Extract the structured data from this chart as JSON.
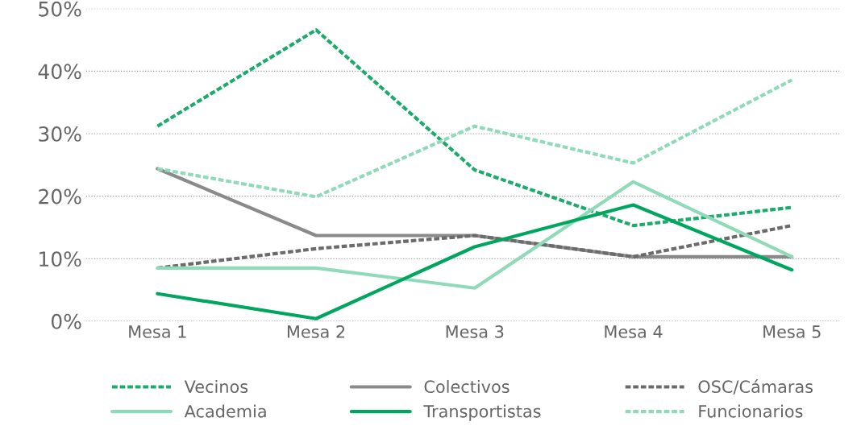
{
  "chart_data": {
    "type": "line",
    "categories": [
      "Mesa 1",
      "Mesa 2",
      "Mesa 3",
      "Mesa 4",
      "Mesa 5"
    ],
    "ylim": [
      0,
      50
    ],
    "yticks": [
      {
        "value": 0,
        "label": "0%"
      },
      {
        "value": 10,
        "label": "10%"
      },
      {
        "value": 20,
        "label": "20%"
      },
      {
        "value": 30,
        "label": "30%"
      },
      {
        "value": 40,
        "label": "40%"
      },
      {
        "value": 50,
        "label": "50%"
      }
    ],
    "grid": "y",
    "legend": "bottom",
    "marker": "none",
    "series": [
      {
        "name": "Vecinos",
        "color": "#1aab6d",
        "line_style": "dashed",
        "values": [
          31.2,
          46.6,
          24.2,
          15.3,
          18.2
        ]
      },
      {
        "name": "Colectivos",
        "color": "#8a8a8a",
        "line_style": "solid",
        "values": [
          24.4,
          13.7,
          13.7,
          10.3,
          10.3
        ]
      },
      {
        "name": "OSC/Cámaras",
        "color": "#6b6b6b",
        "line_style": "dashed",
        "values": [
          8.5,
          11.6,
          13.7,
          10.3,
          15.3
        ]
      },
      {
        "name": "Academia",
        "color": "#8fdab8",
        "line_style": "solid",
        "values": [
          8.5,
          8.5,
          5.3,
          22.3,
          10.3
        ]
      },
      {
        "name": "Transportistas",
        "color": "#00a660",
        "line_style": "solid",
        "values": [
          4.4,
          0.4,
          11.9,
          18.6,
          8.2
        ]
      },
      {
        "name": "Funcionarios",
        "color": "#8fdab8",
        "line_style": "dashed",
        "values": [
          24.4,
          19.9,
          31.2,
          25.3,
          38.6
        ]
      }
    ]
  }
}
